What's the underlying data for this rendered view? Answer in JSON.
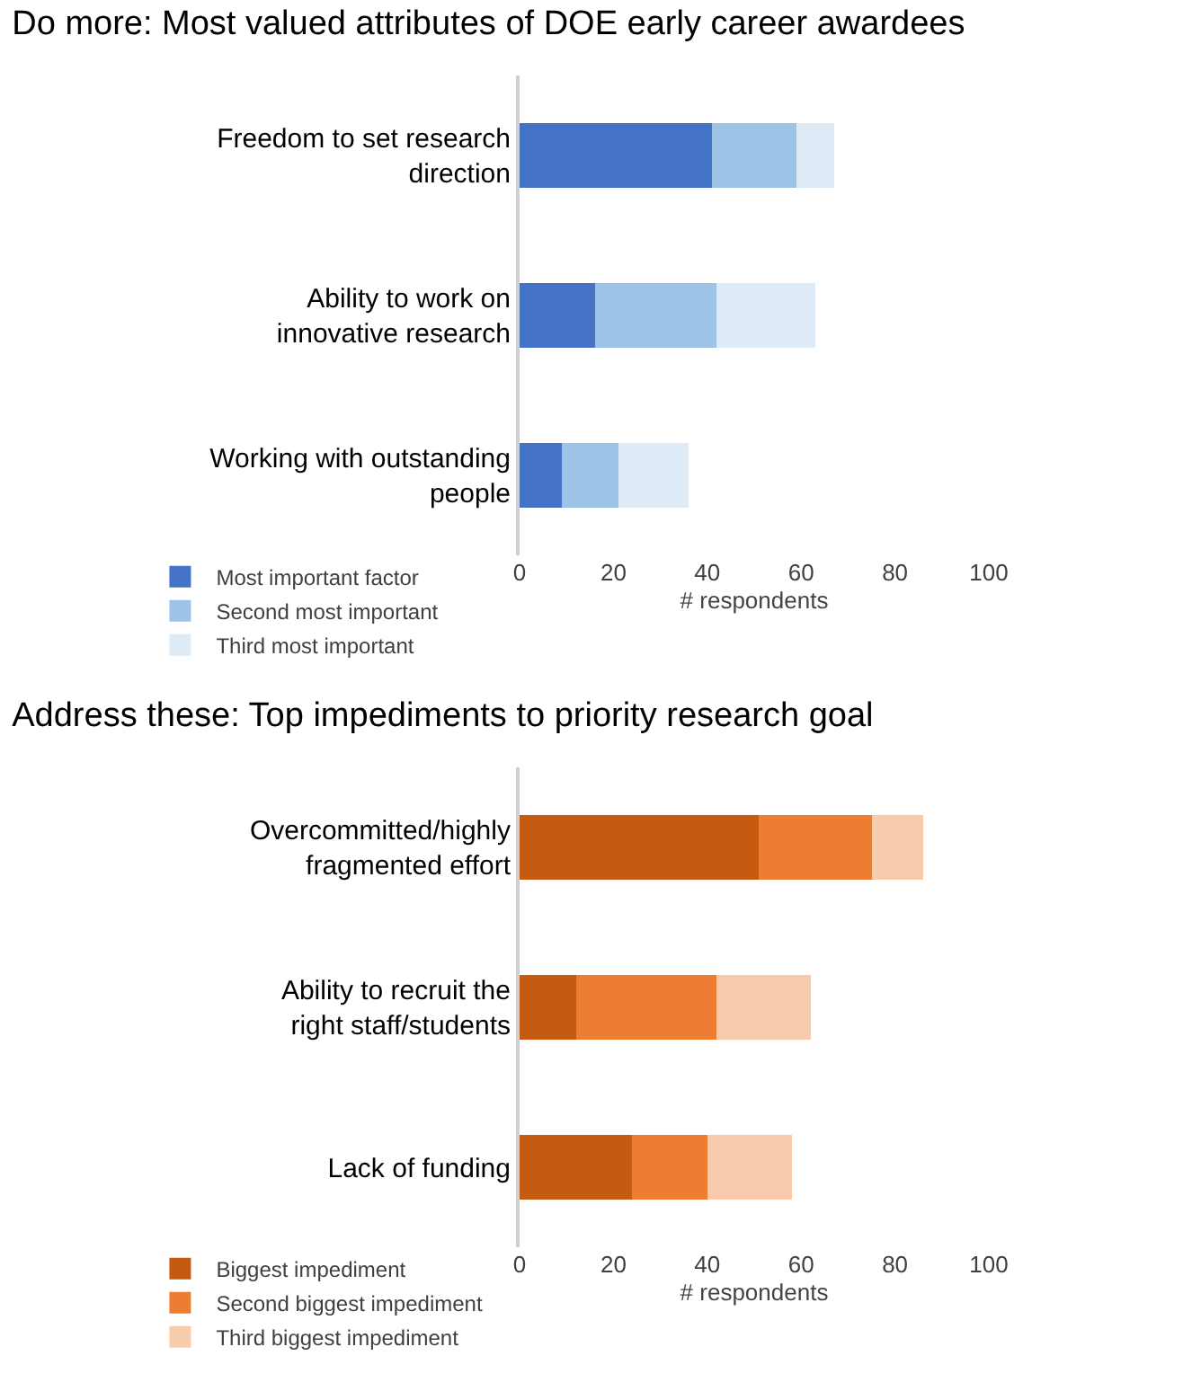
{
  "chart_data": [
    {
      "type": "bar",
      "orientation": "horizontal",
      "stacked": true,
      "title": "Do more: Most valued attributes of DOE early career awardees",
      "xlabel": "# respondents",
      "categories": [
        "Freedom to set research direction",
        "Ability to work on innovative research",
        "Working with outstanding people"
      ],
      "xlim": [
        0,
        100
      ],
      "xticks": [
        0,
        20,
        40,
        60,
        80,
        100
      ],
      "grid": false,
      "legend": "bottom left",
      "series": [
        {
          "name": "Most important factor",
          "color": "#4472c4",
          "values": [
            41,
            16,
            9
          ]
        },
        {
          "name": "Second most important",
          "color": "#9dc3e6",
          "values": [
            18,
            26,
            12
          ]
        },
        {
          "name": "Third most important",
          "color": "#deebf7",
          "values": [
            8,
            21,
            15
          ]
        }
      ]
    },
    {
      "type": "bar",
      "orientation": "horizontal",
      "stacked": true,
      "title": "Address these: Top impediments to priority research goal",
      "xlabel": "# respondents",
      "categories": [
        "Overcommitted/highly fragmented effort",
        "Ability to recruit the right staff/students",
        "Lack of funding"
      ],
      "xlim": [
        0,
        100
      ],
      "xticks": [
        0,
        20,
        40,
        60,
        80,
        100
      ],
      "grid": false,
      "legend": "bottom left",
      "series": [
        {
          "name": "Biggest impediment",
          "color": "#c55a11",
          "values": [
            51,
            12,
            24
          ]
        },
        {
          "name": "Second biggest impediment",
          "color": "#ed7d31",
          "values": [
            24,
            30,
            16
          ]
        },
        {
          "name": "Third biggest impediment",
          "color": "#f8cbad",
          "values": [
            11,
            20,
            18
          ]
        }
      ]
    }
  ]
}
